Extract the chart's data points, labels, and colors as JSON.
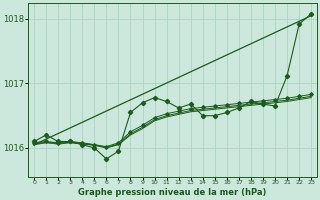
{
  "bg_color": "#cce8dc",
  "grid_color": "#aad4c4",
  "line_color": "#1a5c1a",
  "title": "Graphe pression niveau de la mer (hPa)",
  "xlabel_ticks": [
    0,
    1,
    2,
    3,
    4,
    5,
    6,
    7,
    8,
    9,
    10,
    11,
    12,
    13,
    14,
    15,
    16,
    17,
    18,
    19,
    20,
    21,
    22,
    23
  ],
  "ylim": [
    1015.55,
    1018.25
  ],
  "yticks": [
    1016,
    1017,
    1018
  ],
  "series_straight": [
    1016.05,
    1018.05
  ],
  "series_wavy": [
    1016.1,
    1016.2,
    1016.1,
    1016.1,
    1016.05,
    1016.0,
    1015.83,
    1015.95,
    1016.55,
    1016.7,
    1016.78,
    1016.72,
    1016.62,
    1016.68,
    1016.5,
    1016.5,
    1016.55,
    1016.62,
    1016.72,
    1016.68,
    1016.65,
    1017.12,
    1017.92,
    1018.08
  ],
  "series_smooth1": [
    1016.05,
    1016.08,
    1016.06,
    1016.08,
    1016.06,
    1016.04,
    1016.0,
    1016.05,
    1016.2,
    1016.3,
    1016.42,
    1016.48,
    1016.52,
    1016.56,
    1016.58,
    1016.6,
    1016.62,
    1016.64,
    1016.66,
    1016.68,
    1016.7,
    1016.72,
    1016.75,
    1016.78
  ],
  "series_smooth2": [
    1016.06,
    1016.09,
    1016.07,
    1016.09,
    1016.07,
    1016.05,
    1016.01,
    1016.06,
    1016.22,
    1016.32,
    1016.44,
    1016.5,
    1016.54,
    1016.58,
    1016.6,
    1016.62,
    1016.64,
    1016.66,
    1016.68,
    1016.7,
    1016.72,
    1016.74,
    1016.77,
    1016.8
  ],
  "series_marked2": [
    1016.08,
    1016.1,
    1016.08,
    1016.1,
    1016.08,
    1016.05,
    1016.02,
    1016.08,
    1016.25,
    1016.35,
    1016.47,
    1016.53,
    1016.57,
    1016.61,
    1016.63,
    1016.65,
    1016.67,
    1016.69,
    1016.71,
    1016.73,
    1016.75,
    1016.77,
    1016.8,
    1016.83
  ]
}
